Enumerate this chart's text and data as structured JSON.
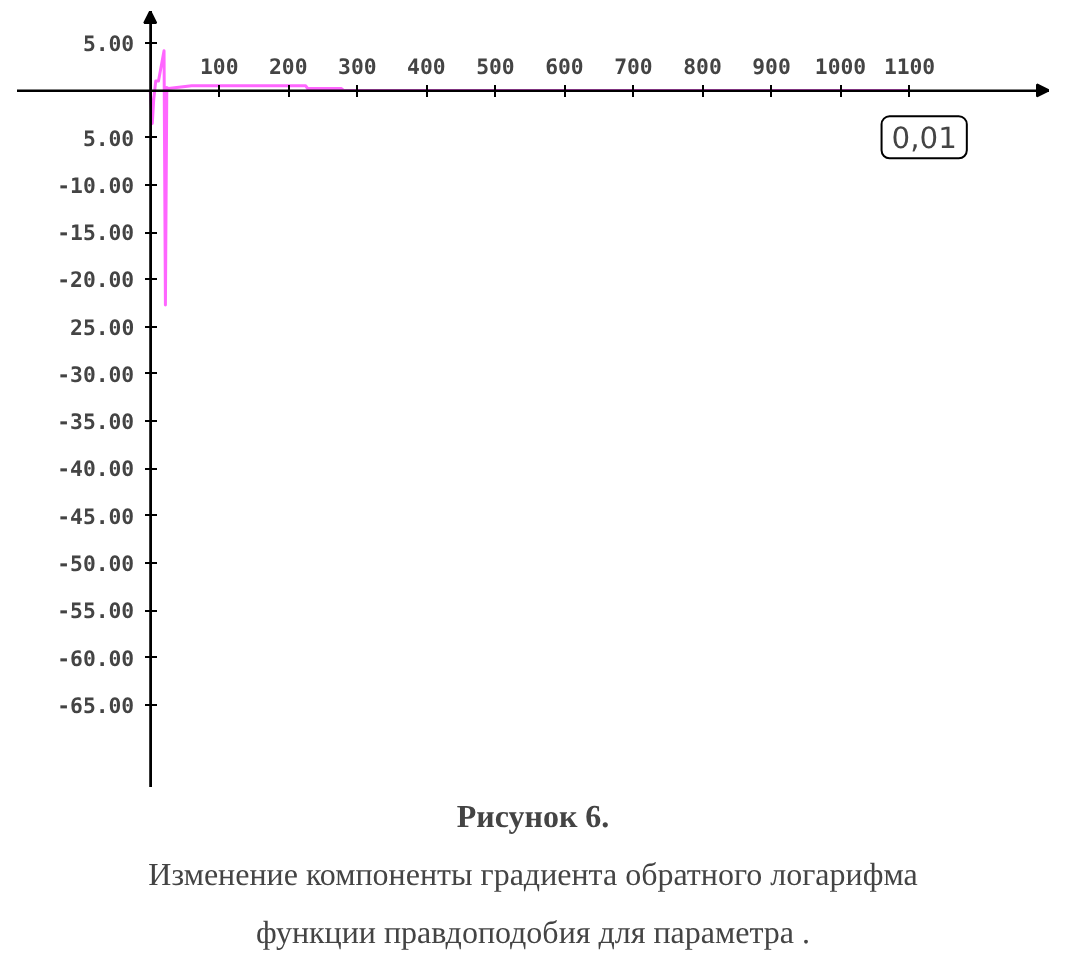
{
  "chart_data": {
    "type": "line",
    "title": "Рисунок 6.",
    "subtitle": "Изменение компоненты градиента обратного логарифма функции правдоподобия для параметра .",
    "x": [
      0,
      3,
      5,
      8,
      12,
      20,
      22,
      24,
      26,
      60,
      225,
      228,
      277,
      280,
      1100
    ],
    "series": [
      {
        "color": "#ff66ff",
        "values": [
          0,
          -3.5,
          -1,
          1,
          1,
          4.2,
          -22.7,
          0.3,
          0.2,
          0.5,
          0.5,
          0.2,
          0.2,
          0,
          0
        ]
      }
    ],
    "xlim": [
      -193,
      1302
    ],
    "ylim": [
      -73.7,
      8.4
    ],
    "xticks": [
      100,
      200,
      300,
      400,
      500,
      600,
      700,
      800,
      900,
      1000,
      1100
    ],
    "yticks": [
      {
        "value": 5,
        "label": "5.00"
      },
      {
        "value": -5,
        "label": "5.00"
      },
      {
        "value": -10,
        "label": "-10.00"
      },
      {
        "value": -15,
        "label": "-15.00"
      },
      {
        "value": -20,
        "label": "-20.00"
      },
      {
        "value": -25,
        "label": "25.00"
      },
      {
        "value": -30,
        "label": "-30.00"
      },
      {
        "value": -35,
        "label": "-35.00"
      },
      {
        "value": -40,
        "label": "-40.00"
      },
      {
        "value": -45,
        "label": "-45.00"
      },
      {
        "value": -50,
        "label": "-50.00"
      },
      {
        "value": -55,
        "label": "-55.00"
      },
      {
        "value": -60,
        "label": "-60.00"
      },
      {
        "value": -65,
        "label": "-65.00"
      }
    ],
    "annotations": [
      {
        "text": "0,01",
        "x": 1100,
        "y": 0.01
      }
    ],
    "grid": false,
    "marker": "none",
    "line_style": "solid"
  }
}
